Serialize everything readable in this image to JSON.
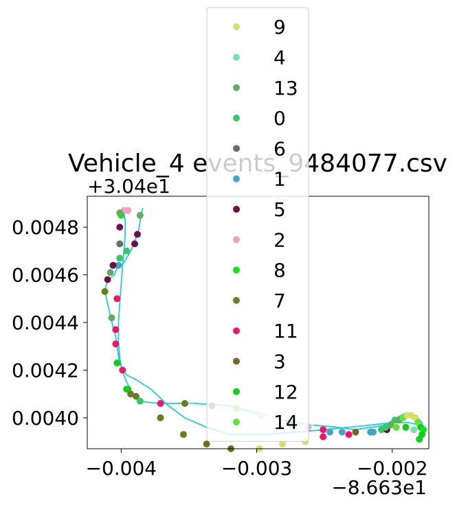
{
  "chart_data": {
    "type": "scatter",
    "title": "Vehicle_4 events_9484077.csv",
    "xlabel": "",
    "ylabel": "",
    "x_offset_text": "−8.663e1",
    "y_offset_text": "+3.04e1",
    "x_offset": -86.63,
    "y_offset": 30.4,
    "xlim": [
      -0.00425,
      -0.00173
    ],
    "ylim": [
      0.00387,
      0.00493
    ],
    "xticks": [
      {
        "value": -0.004,
        "label": "−0.004"
      },
      {
        "value": -0.003,
        "label": "−0.003"
      },
      {
        "value": -0.002,
        "label": "−0.002"
      }
    ],
    "yticks": [
      {
        "value": 0.004,
        "label": "0.0040"
      },
      {
        "value": 0.0042,
        "label": "0.0042"
      },
      {
        "value": 0.0044,
        "label": "0.0044"
      },
      {
        "value": 0.0046,
        "label": "0.0046"
      },
      {
        "value": 0.0048,
        "label": "0.0048"
      }
    ],
    "grid": false,
    "legend_position": "top-center",
    "legend": [
      {
        "label": "9",
        "color": "#d4e06a"
      },
      {
        "label": "4",
        "color": "#79e0a8"
      },
      {
        "label": "13",
        "color": "#62ad5c"
      },
      {
        "label": "0",
        "color": "#3cc46a"
      },
      {
        "label": "6",
        "color": "#6b6b6b"
      },
      {
        "label": "1",
        "color": "#44a3c4"
      },
      {
        "label": "5",
        "color": "#6d1049"
      },
      {
        "label": "2",
        "color": "#f2a1c0"
      },
      {
        "label": "8",
        "color": "#0ae61c"
      },
      {
        "label": "7",
        "color": "#6b7d1f"
      },
      {
        "label": "11",
        "color": "#f0166a"
      },
      {
        "label": "3",
        "color": "#706a1e"
      },
      {
        "label": "12",
        "color": "#12cc18"
      },
      {
        "label": "14",
        "color": "#62e33a"
      }
    ],
    "line_series": [
      {
        "name": "path_cyan",
        "color": "#1fcce6",
        "points": [
          [
            -0.00384,
            0.00488
          ],
          [
            -0.00385,
            0.00486
          ],
          [
            -0.00387,
            0.00479
          ],
          [
            -0.0039,
            0.00474
          ],
          [
            -0.00393,
            0.0047
          ],
          [
            -0.00397,
            0.00466
          ],
          [
            -0.004,
            0.00464
          ],
          [
            -0.00403,
            0.00463
          ],
          [
            -0.00405,
            0.0046
          ],
          [
            -0.00407,
            0.00459
          ],
          [
            -0.00409,
            0.00458
          ],
          [
            -0.00411,
            0.00456
          ],
          [
            -0.00412,
            0.00453
          ],
          [
            -0.0041,
            0.00448
          ],
          [
            -0.00408,
            0.00443
          ],
          [
            -0.00406,
            0.00438
          ],
          [
            -0.00404,
            0.00434
          ],
          [
            -0.00403,
            0.0043
          ],
          [
            -0.00402,
            0.00426
          ],
          [
            -0.00401,
            0.00423
          ],
          [
            -0.00399,
            0.0042
          ],
          [
            -0.00396,
            0.00418
          ],
          [
            -0.00389,
            0.00416
          ],
          [
            -0.00378,
            0.00412
          ],
          [
            -0.00365,
            0.00405
          ],
          [
            -0.00353,
            0.004
          ],
          [
            -0.00337,
            0.00396
          ],
          [
            -0.0032,
            0.00393
          ],
          [
            -0.00295,
            0.00393
          ],
          [
            -0.0027,
            0.00394
          ],
          [
            -0.0025,
            0.00395
          ],
          [
            -0.00232,
            0.00396
          ],
          [
            -0.00215,
            0.00397
          ],
          [
            -0.002,
            0.00398
          ],
          [
            -0.00188,
            0.00398
          ],
          [
            -0.0018,
            0.00397
          ],
          [
            -0.00177,
            0.00395
          ],
          [
            -0.00178,
            0.00398
          ],
          [
            -0.00183,
            0.00401
          ],
          [
            -0.0019,
            0.00402
          ],
          [
            -0.00197,
            0.004
          ],
          [
            -0.00205,
            0.00397
          ],
          [
            -0.00215,
            0.00396
          ],
          [
            -0.00228,
            0.00395
          ],
          [
            -0.0024,
            0.00396
          ],
          [
            -0.0026,
            0.00397
          ],
          [
            -0.0028,
            0.00399
          ],
          [
            -0.003,
            0.00402
          ],
          [
            -0.0032,
            0.00405
          ],
          [
            -0.00345,
            0.00406
          ],
          [
            -0.00372,
            0.00406
          ],
          [
            -0.00387,
            0.00407
          ],
          [
            -0.00392,
            0.0041
          ],
          [
            -0.00399,
            0.00419
          ],
          [
            -0.00401,
            0.00425
          ],
          [
            -0.00402,
            0.00432
          ],
          [
            -0.00402,
            0.0044
          ],
          [
            -0.00401,
            0.00448
          ],
          [
            -0.004,
            0.00456
          ],
          [
            -0.00399,
            0.00463
          ],
          [
            -0.00398,
            0.0047
          ],
          [
            -0.00397,
            0.00477
          ],
          [
            -0.00397,
            0.00483
          ],
          [
            -0.00398,
            0.00486
          ],
          [
            -0.00396,
            0.00487
          ]
        ]
      },
      {
        "name": "path_light",
        "color": "#cff3ef",
        "points": [
          [
            -0.00355,
            0.00406
          ],
          [
            -0.00335,
            0.00405
          ],
          [
            -0.00315,
            0.00403
          ],
          [
            -0.00295,
            0.00401
          ],
          [
            -0.00275,
            0.00399
          ],
          [
            -0.00258,
            0.00397
          ]
        ]
      }
    ],
    "points": [
      {
        "x": -0.00395,
        "y": 0.00487,
        "label": "2"
      },
      {
        "x": -0.00398,
        "y": 0.00487,
        "label": "2"
      },
      {
        "x": -0.004,
        "y": 0.00485,
        "label": "8"
      },
      {
        "x": -0.00401,
        "y": 0.00486,
        "label": "13"
      },
      {
        "x": -0.00401,
        "y": 0.0048,
        "label": "5"
      },
      {
        "x": -0.00401,
        "y": 0.00473,
        "label": "6"
      },
      {
        "x": -0.00401,
        "y": 0.00467,
        "label": "0"
      },
      {
        "x": -0.00402,
        "y": 0.00464,
        "label": "1"
      },
      {
        "x": -0.00406,
        "y": 0.00464,
        "label": "5"
      },
      {
        "x": -0.00408,
        "y": 0.00461,
        "label": "13"
      },
      {
        "x": -0.0041,
        "y": 0.00458,
        "label": "5"
      },
      {
        "x": -0.00412,
        "y": 0.00453,
        "label": "7"
      },
      {
        "x": -0.00386,
        "y": 0.00485,
        "label": "13"
      },
      {
        "x": -0.00388,
        "y": 0.00477,
        "label": "5"
      },
      {
        "x": -0.0039,
        "y": 0.00473,
        "label": "5"
      },
      {
        "x": -0.00396,
        "y": 0.0047,
        "label": "0"
      },
      {
        "x": -0.00403,
        "y": 0.0045,
        "label": "11"
      },
      {
        "x": -0.00407,
        "y": 0.00442,
        "label": "13"
      },
      {
        "x": -0.00404,
        "y": 0.00437,
        "label": "11"
      },
      {
        "x": -0.00404,
        "y": 0.00431,
        "label": "11"
      },
      {
        "x": -0.00403,
        "y": 0.00423,
        "label": "12"
      },
      {
        "x": -0.00399,
        "y": 0.0042,
        "label": "11"
      },
      {
        "x": -0.00396,
        "y": 0.00412,
        "label": "12"
      },
      {
        "x": -0.00389,
        "y": 0.00409,
        "label": "7"
      },
      {
        "x": -0.00386,
        "y": 0.00407,
        "label": "0"
      },
      {
        "x": -0.00371,
        "y": 0.00406,
        "label": "11"
      },
      {
        "x": -0.00353,
        "y": 0.00406,
        "label": "7"
      },
      {
        "x": -0.00333,
        "y": 0.00405,
        "label": "3"
      },
      {
        "x": -0.00315,
        "y": 0.00404,
        "label": "14"
      },
      {
        "x": -0.00297,
        "y": 0.00401,
        "label": "9"
      },
      {
        "x": -0.00276,
        "y": 0.00398,
        "label": "3"
      },
      {
        "x": -0.00262,
        "y": 0.00396,
        "label": "2"
      },
      {
        "x": -0.00251,
        "y": 0.00395,
        "label": "11"
      },
      {
        "x": -0.00251,
        "y": 0.00392,
        "label": "11"
      },
      {
        "x": -0.00237,
        "y": 0.00394,
        "label": "1"
      },
      {
        "x": -0.00232,
        "y": 0.00393,
        "label": "11"
      },
      {
        "x": -0.00227,
        "y": 0.00394,
        "label": "3"
      },
      {
        "x": -0.00216,
        "y": 0.00394,
        "label": "1"
      },
      {
        "x": -0.00208,
        "y": 0.00395,
        "label": "0"
      },
      {
        "x": -0.00204,
        "y": 0.00395,
        "label": "5"
      },
      {
        "x": -0.00201,
        "y": 0.00397,
        "label": "13"
      },
      {
        "x": -0.00198,
        "y": 0.00399,
        "label": "0"
      },
      {
        "x": -0.00195,
        "y": 0.00399,
        "label": "13"
      },
      {
        "x": -0.00192,
        "y": 0.004,
        "label": "14"
      },
      {
        "x": -0.00189,
        "y": 0.00401,
        "label": "9"
      },
      {
        "x": -0.00186,
        "y": 0.00401,
        "label": "9"
      },
      {
        "x": -0.00183,
        "y": 0.004,
        "label": "9"
      },
      {
        "x": -0.00181,
        "y": 0.00398,
        "label": "14"
      },
      {
        "x": -0.00179,
        "y": 0.00396,
        "label": "12"
      },
      {
        "x": -0.00177,
        "y": 0.00395,
        "label": "8"
      },
      {
        "x": -0.00178,
        "y": 0.00393,
        "label": "12"
      },
      {
        "x": -0.0018,
        "y": 0.00391,
        "label": "12"
      },
      {
        "x": -0.00184,
        "y": 0.00395,
        "label": "4"
      },
      {
        "x": -0.0019,
        "y": 0.00396,
        "label": "12"
      },
      {
        "x": -0.00197,
        "y": 0.00396,
        "label": "14"
      },
      {
        "x": -0.00205,
        "y": 0.00396,
        "label": "0"
      },
      {
        "x": -0.00214,
        "y": 0.00394,
        "label": "1"
      },
      {
        "x": -0.00246,
        "y": 0.00394,
        "label": "1"
      },
      {
        "x": -0.00264,
        "y": 0.0039,
        "label": "9"
      },
      {
        "x": -0.00281,
        "y": 0.00389,
        "label": "9"
      },
      {
        "x": -0.00298,
        "y": 0.00387,
        "label": "9"
      },
      {
        "x": -0.00319,
        "y": 0.00387,
        "label": "3"
      },
      {
        "x": -0.00337,
        "y": 0.00389,
        "label": "3"
      },
      {
        "x": -0.00354,
        "y": 0.00393,
        "label": "7"
      },
      {
        "x": -0.00371,
        "y": 0.004,
        "label": "7"
      },
      {
        "x": -0.00395,
        "y": 0.00412,
        "label": "12"
      },
      {
        "x": -0.00393,
        "y": 0.0041,
        "label": "7"
      }
    ]
  }
}
